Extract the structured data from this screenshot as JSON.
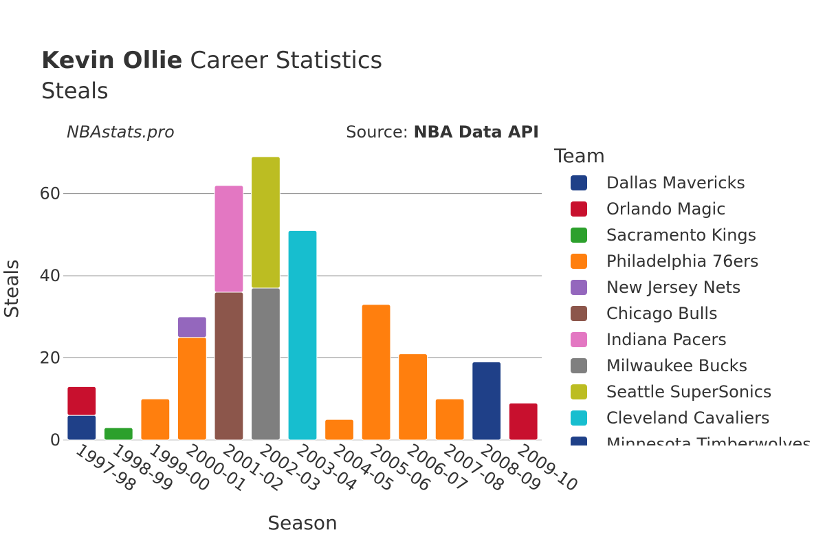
{
  "header": {
    "player": "Kevin Ollie",
    "title_rest": "Career Statistics",
    "subtitle": "Steals",
    "watermark": "NBAstats.pro",
    "source_prefix": "Source: ",
    "source_name": "NBA Data API"
  },
  "chart_data": {
    "type": "bar",
    "stacked": true,
    "xlabel": "Season",
    "ylabel": "Steals",
    "ylim": [
      0,
      72
    ],
    "yticks": [
      0,
      20,
      40,
      60
    ],
    "grid": true,
    "legend_title": "Team",
    "legend_position": "right",
    "categories": [
      "1997-98",
      "1998-99",
      "1999-00",
      "2000-01",
      "2001-02",
      "2002-03",
      "2003-04",
      "2004-05",
      "2005-06",
      "2006-07",
      "2007-08",
      "2008-09",
      "2009-10"
    ],
    "series": [
      {
        "name": "Dallas Mavericks",
        "color": "#1f4088",
        "values": [
          6,
          0,
          0,
          0,
          0,
          0,
          0,
          0,
          0,
          0,
          0,
          0,
          0
        ]
      },
      {
        "name": "Orlando Magic",
        "color": "#c8102e",
        "values": [
          7,
          0,
          0,
          0,
          0,
          0,
          0,
          0,
          0,
          0,
          0,
          0,
          9
        ]
      },
      {
        "name": "Sacramento Kings",
        "color": "#2ca02c",
        "values": [
          0,
          3,
          0,
          0,
          0,
          0,
          0,
          0,
          0,
          0,
          0,
          0,
          0
        ]
      },
      {
        "name": "Philadelphia 76ers",
        "color": "#ff7f0e",
        "values": [
          0,
          0,
          10,
          25,
          0,
          0,
          0,
          5,
          33,
          21,
          10,
          0,
          0
        ]
      },
      {
        "name": "New Jersey Nets",
        "color": "#9467bd",
        "values": [
          0,
          0,
          0,
          5,
          0,
          0,
          0,
          0,
          0,
          0,
          0,
          0,
          0
        ]
      },
      {
        "name": "Chicago Bulls",
        "color": "#8c564b",
        "values": [
          0,
          0,
          0,
          0,
          36,
          0,
          0,
          0,
          0,
          0,
          0,
          0,
          0
        ]
      },
      {
        "name": "Indiana Pacers",
        "color": "#e377c2",
        "values": [
          0,
          0,
          0,
          0,
          26,
          0,
          0,
          0,
          0,
          0,
          0,
          0,
          0
        ]
      },
      {
        "name": "Milwaukee Bucks",
        "color": "#7f7f7f",
        "values": [
          0,
          0,
          0,
          0,
          0,
          37,
          0,
          0,
          0,
          0,
          0,
          0,
          0
        ]
      },
      {
        "name": "Seattle SuperSonics",
        "color": "#bcbd22",
        "values": [
          0,
          0,
          0,
          0,
          0,
          32,
          0,
          0,
          0,
          0,
          0,
          0,
          0
        ]
      },
      {
        "name": "Cleveland Cavaliers",
        "color": "#17becf",
        "values": [
          0,
          0,
          0,
          0,
          0,
          0,
          51,
          0,
          0,
          0,
          0,
          0,
          0
        ]
      },
      {
        "name": "Minnesota Timberwolves",
        "color": "#1f4088",
        "values": [
          0,
          0,
          0,
          0,
          0,
          0,
          0,
          0,
          0,
          0,
          0,
          19,
          0
        ]
      }
    ]
  }
}
